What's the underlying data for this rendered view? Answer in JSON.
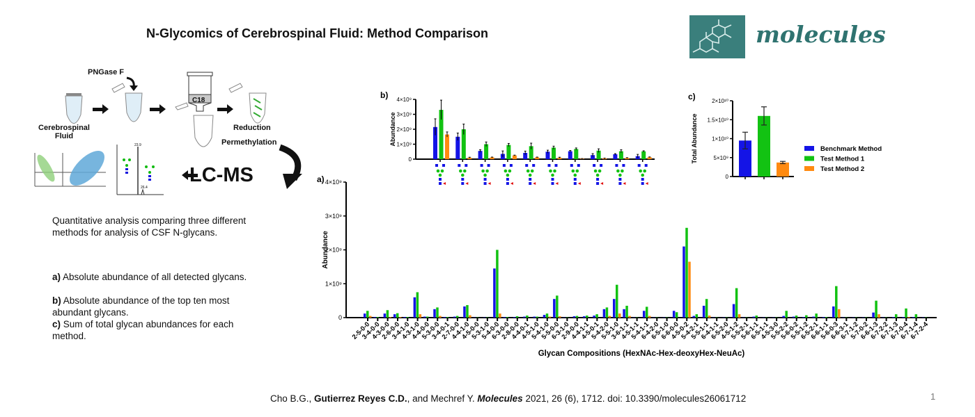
{
  "title": "N-Glycomics of Cerebrospinal Fluid: Method Comparison",
  "logo": {
    "text": "molecules"
  },
  "workflow": {
    "sample_label": "Cerebrospinal Fluid",
    "enzyme_label": "PNGase F",
    "cartridge_label": "C18",
    "step_reduction": "Reduction",
    "step_permethylation": "Permethylation",
    "instrument_label": "LC-MS",
    "chromatogram_peaks": [
      "23.9",
      "26.4"
    ]
  },
  "description": {
    "intro": "Quantitative analysis comparing three different methods for analysis of CSF N-glycans.",
    "items": [
      {
        "key": "a)",
        "text": "Absolute abundance of all detected glycans."
      },
      {
        "key": "b)",
        "text": "Absolute abundance of the top ten most abundant glycans."
      },
      {
        "key": "c)",
        "text": "Sum of total glycan abundances for each method."
      }
    ]
  },
  "citation": {
    "authors_pre": "Cho B.G., ",
    "author_bold": "Gutierrez Reyes C.D.",
    "authors_post": ", and Mechref Y. ",
    "journal": "Molecules",
    "details": " 2021, 26 (6), 1712. doi: 10.3390/molecules26061712"
  },
  "page_number": "1",
  "colors": {
    "benchmark": "#1414e6",
    "test1": "#12c212",
    "test2": "#ff8a10"
  },
  "chart_data": [
    {
      "id": "a",
      "panel_label": "a)",
      "type": "bar",
      "ylabel": "Abundance",
      "xlabel": "Glycan Compositions (HexNAc-Hex-deoxyHex-NeuAc)",
      "ylim": [
        0,
        4000000000
      ],
      "yticks": [
        {
          "v": 0,
          "label": "0"
        },
        {
          "v": 1000000000,
          "label": "1×10⁹"
        },
        {
          "v": 2000000000,
          "label": "2×10⁹"
        },
        {
          "v": 3000000000,
          "label": "3×10⁹"
        },
        {
          "v": 4000000000,
          "label": "4×10⁹"
        }
      ],
      "categories": [
        "2-5-0-0",
        "3-4-0-0",
        "4-3-0-0",
        "2-6-0-0",
        "3-4-1-0",
        "4-3-1-0",
        "4-4-0-0",
        "5-3-0-0",
        "3-4-0-1",
        "2-7-0-0",
        "4-4-1-0",
        "4-5-0-0",
        "5-3-1-0",
        "5-4-0-0",
        "6-3-0-0",
        "2-8-0-0",
        "4-4-0-1",
        "4-5-1-0",
        "5-4-1-0",
        "5-5-0-0",
        "6-3-1-0",
        "2-9-0-0",
        "4-4-1-1",
        "4-5-0-1",
        "5-4-2-0",
        "5-5-1-0",
        "3-6-1-1",
        "4-5-1-1",
        "5-4-1-1",
        "6-4-2-0",
        "6-5-1-0",
        "6-6-0-0",
        "4-5-0-2",
        "5-4-2-1",
        "5-5-1-1",
        "6-4-1-1",
        "6-5-2-0",
        "4-5-1-2",
        "5-5-2-1",
        "5-6-1-1",
        "6-5-1-1",
        "4-5-3-0",
        "5-5-2-2",
        "5-6-0-2",
        "5-5-1-2",
        "6-5-2-1",
        "6-6-1-1",
        "5-6-0-3",
        "6-6-3-1",
        "6-7-1-2",
        "5-7-0-2",
        "6-6-1-3",
        "6-7-2-2",
        "6-7-1-3",
        "6-7-0-4",
        "6-7-1-4",
        "6-7-2-4"
      ],
      "series": [
        {
          "name": "Benchmark Method",
          "values": [
            0.12,
            0.02,
            0.12,
            0.1,
            0.02,
            0.6,
            0.03,
            0.25,
            0.02,
            0.03,
            0.33,
            0.01,
            0.01,
            1.45,
            0.02,
            0.02,
            0.03,
            0.03,
            0.08,
            0.55,
            0.01,
            0.04,
            0.04,
            0.06,
            0.25,
            0.55,
            0.25,
            0.01,
            0.2,
            0.01,
            0.01,
            0.2,
            2.1,
            0.05,
            0.35,
            0.01,
            0.01,
            0.4,
            0.01,
            0.03,
            0.01,
            0.01,
            0.05,
            0.03,
            0.02,
            0.03,
            0.02,
            0.33,
            0.01,
            0.01,
            0.01,
            0.15,
            0.01,
            0.02,
            0.02,
            0.02,
            0.01
          ]
        },
        {
          "name": "Test Method 1",
          "values": [
            0.2,
            0.02,
            0.22,
            0.13,
            0.02,
            0.75,
            0.03,
            0.3,
            0.02,
            0.05,
            0.37,
            0.01,
            0.01,
            2.0,
            0.02,
            0.04,
            0.06,
            0.03,
            0.12,
            0.65,
            0.01,
            0.05,
            0.06,
            0.1,
            0.3,
            0.97,
            0.35,
            0.01,
            0.32,
            0.01,
            0.01,
            0.16,
            2.65,
            0.1,
            0.55,
            0.01,
            0.01,
            0.87,
            0.01,
            0.06,
            0.01,
            0.01,
            0.2,
            0.06,
            0.07,
            0.12,
            0.02,
            0.93,
            0.01,
            0.01,
            0.01,
            0.5,
            0.01,
            0.1,
            0.27,
            0.1,
            0.01
          ]
        },
        {
          "name": "Test Method 2",
          "values": [
            0.05,
            0.0,
            0.02,
            0.02,
            0.0,
            0.1,
            0.0,
            0.05,
            0.0,
            0.0,
            0.07,
            0.0,
            0.0,
            0.12,
            0.0,
            0.0,
            0.0,
            0.0,
            0.03,
            0.04,
            0.0,
            0.0,
            0.0,
            0.0,
            0.05,
            0.12,
            0.05,
            0.0,
            0.05,
            0.0,
            0.0,
            0.0,
            1.65,
            0.0,
            0.06,
            0.0,
            0.0,
            0.1,
            0.0,
            0.0,
            0.0,
            0.0,
            0.0,
            0.0,
            0.0,
            0.0,
            0.0,
            0.25,
            0.0,
            0.0,
            0.0,
            0.1,
            0.0,
            0.0,
            0.02,
            0.0,
            0.0
          ]
        }
      ],
      "value_unit_multiplier": 1000000000
    },
    {
      "id": "b",
      "panel_label": "b)",
      "type": "bar",
      "ylabel": "Abundance",
      "ylim": [
        0,
        4000000000
      ],
      "yticks": [
        {
          "v": 0,
          "label": "0"
        },
        {
          "v": 1000000000,
          "label": "1×10⁹"
        },
        {
          "v": 2000000000,
          "label": "2×10⁹"
        },
        {
          "v": 3000000000,
          "label": "3×10⁹"
        },
        {
          "v": 4000000000,
          "label": "4×10⁹"
        }
      ],
      "series": [
        {
          "name": "Benchmark Method",
          "values": [
            2.15,
            1.5,
            0.55,
            0.35,
            0.42,
            0.5,
            0.53,
            0.27,
            0.33,
            0.2
          ],
          "errors": [
            0.55,
            0.25,
            0.08,
            0.2,
            0.12,
            0.1,
            0.05,
            0.1,
            0.04,
            0.12
          ]
        },
        {
          "name": "Test Method 1",
          "values": [
            3.3,
            2.0,
            1.0,
            0.95,
            0.87,
            0.77,
            0.68,
            0.57,
            0.53,
            0.52
          ],
          "errors": [
            0.65,
            0.35,
            0.15,
            0.1,
            0.2,
            0.1,
            0.07,
            0.12,
            0.1,
            0.04
          ]
        },
        {
          "name": "Test Method 2",
          "values": [
            1.65,
            0.1,
            0.12,
            0.25,
            0.12,
            0.1,
            0.03,
            0.05,
            0.08,
            0.13
          ],
          "errors": [
            0.17,
            0.03,
            0.02,
            0.02,
            0.02,
            0.03,
            0.01,
            0.02,
            0.02,
            0.02
          ]
        }
      ],
      "value_unit_multiplier": 1000000000
    },
    {
      "id": "c",
      "panel_label": "c)",
      "type": "bar",
      "ylabel": "Total Abundance",
      "ylim": [
        0,
        20000000000
      ],
      "yticks": [
        {
          "v": 0,
          "label": "0"
        },
        {
          "v": 5000000000,
          "label": "5×10⁹"
        },
        {
          "v": 10000000000,
          "label": "1×10¹⁰"
        },
        {
          "v": 15000000000,
          "label": "1.5×10¹⁰"
        },
        {
          "v": 20000000000,
          "label": "2×10¹⁰"
        }
      ],
      "categories": [
        "Benchmark Method",
        "Test Method 1",
        "Test Method 2"
      ],
      "values": [
        9500000000,
        16000000000,
        3700000000
      ],
      "errors": [
        2200000000,
        2400000000,
        300000000
      ],
      "legend": [
        "Benchmark Method",
        "Test Method 1",
        "Test Method 2"
      ],
      "legend_position": "right"
    }
  ]
}
